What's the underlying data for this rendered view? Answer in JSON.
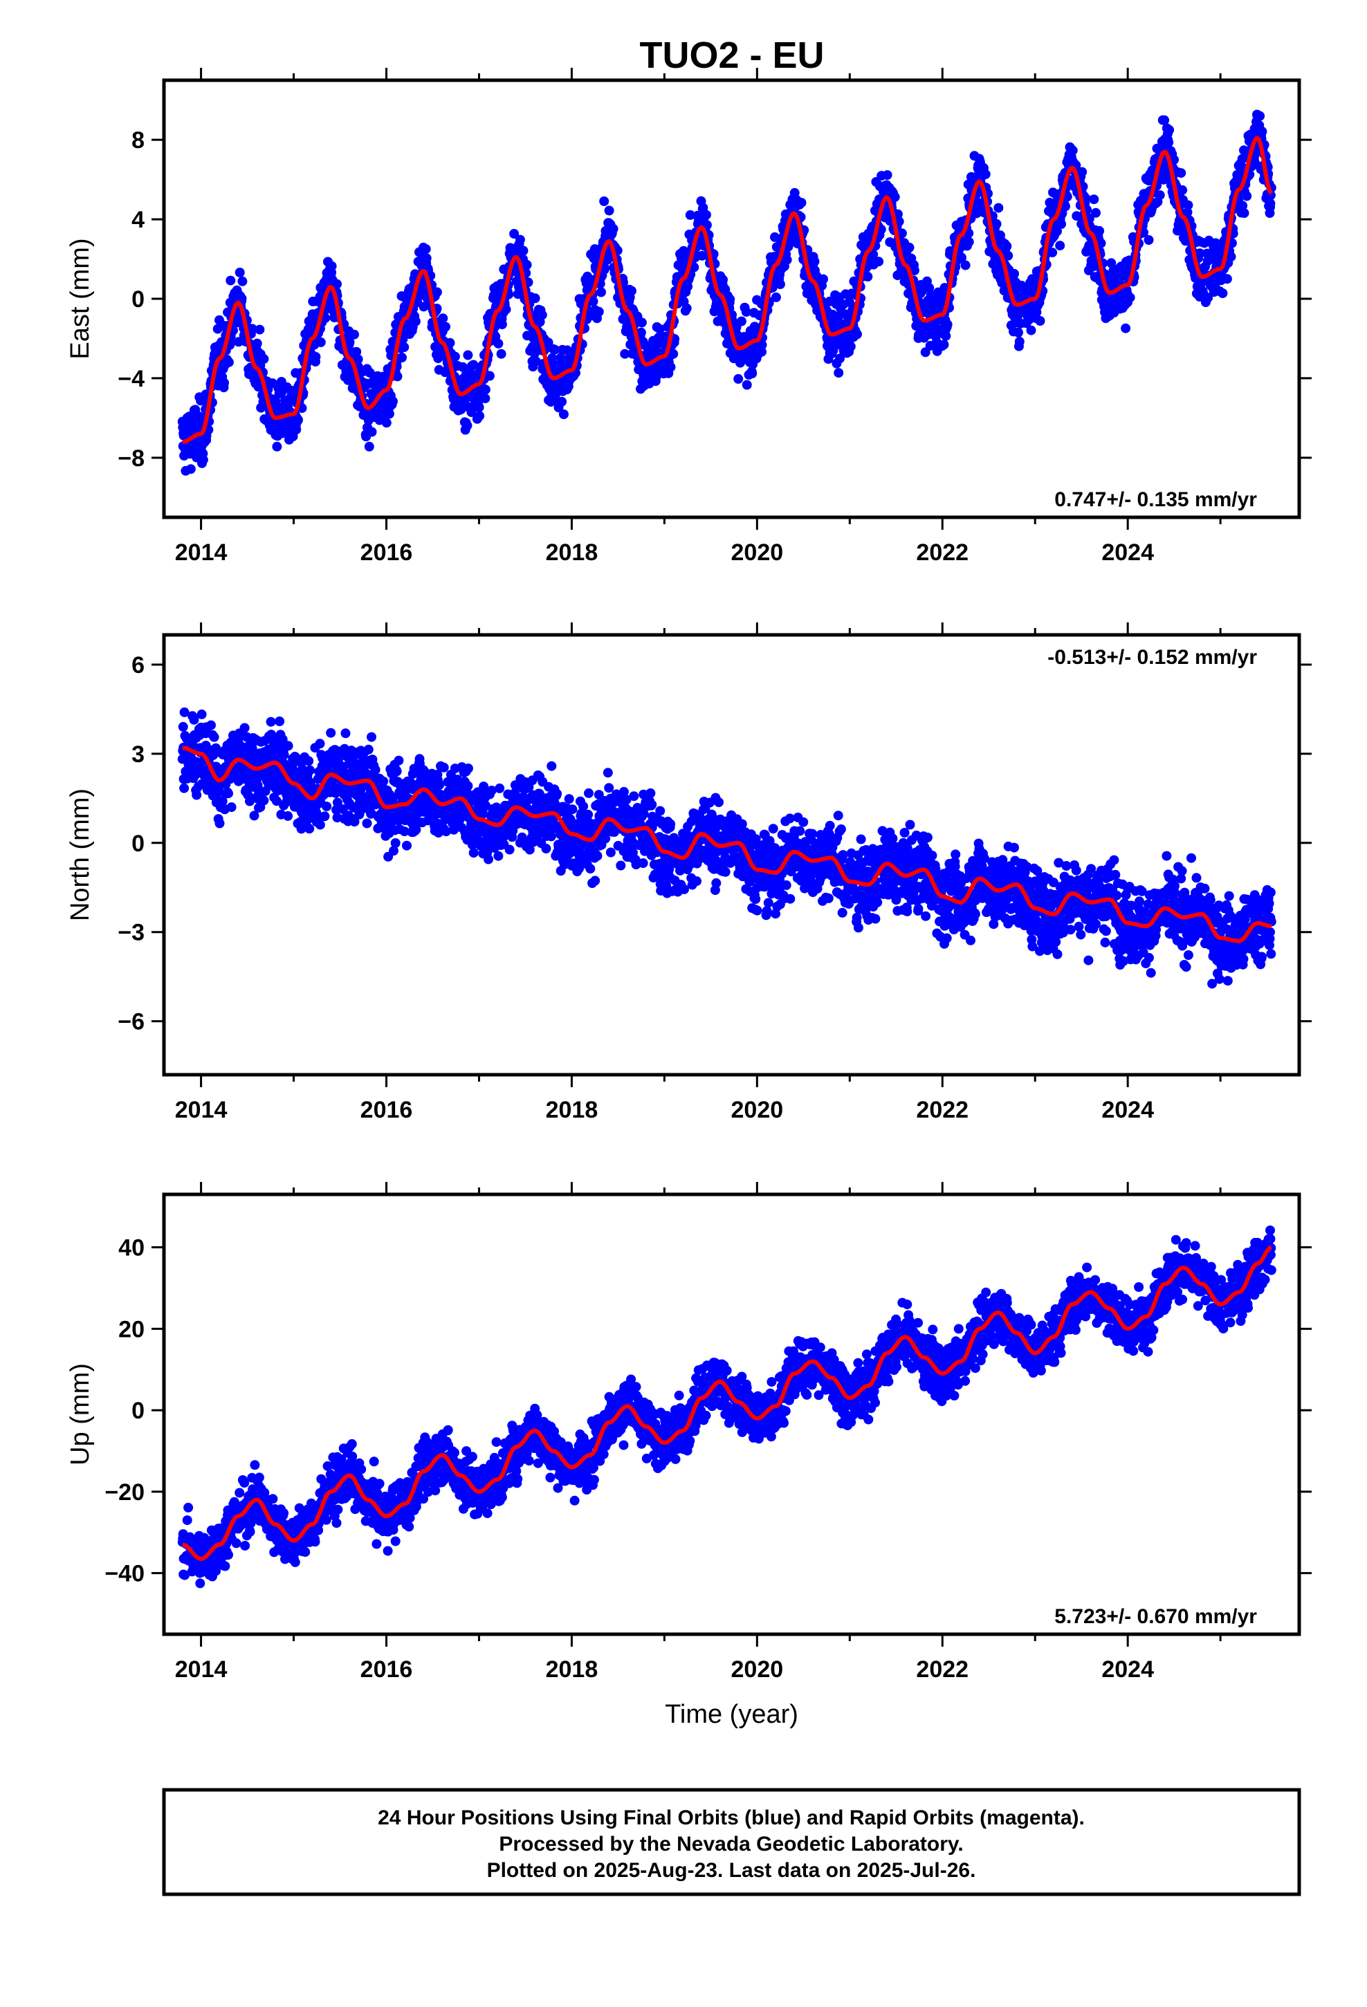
{
  "title": "TUO2 - EU",
  "footer": {
    "lines": [
      "24 Hour Positions Using Final Orbits (blue) and Rapid Orbits (magenta).",
      "Processed by the Nevada Geodetic Laboratory.",
      "Plotted on 2025-Aug-23. Last data on 2025-Jul-26."
    ]
  },
  "colors": {
    "points": "#0000ff",
    "model": "#ff0000",
    "frame": "#000000"
  },
  "chart_data": [
    {
      "type": "scatter",
      "ylabel": "East (mm)",
      "xlabel": "",
      "rate_label": "0.747+/- 0.135 mm/yr",
      "rate_position": "bottom-right",
      "xlim": [
        2013.6,
        2025.85
      ],
      "ylim": [
        -11,
        11
      ],
      "xticks": [
        "2014",
        "2016",
        "2018",
        "2020",
        "2022",
        "2024"
      ],
      "yticks": [
        "−8",
        "−4",
        "0",
        "4",
        "8"
      ],
      "series": [
        {
          "kind": "points",
          "x": [
            2013.8,
            2014.0,
            2014.2,
            2014.4,
            2014.6,
            2014.8,
            2015.0,
            2015.2,
            2015.4,
            2015.6,
            2015.8,
            2016.0,
            2016.2,
            2016.4,
            2016.6,
            2016.8,
            2017.0,
            2017.2,
            2017.4,
            2017.6,
            2017.8,
            2018.0,
            2018.2,
            2018.4,
            2018.6,
            2018.8,
            2019.0,
            2019.2,
            2019.4,
            2019.6,
            2019.8,
            2020.0,
            2020.2,
            2020.4,
            2020.6,
            2020.8,
            2021.0,
            2021.2,
            2021.4,
            2021.6,
            2021.8,
            2022.0,
            2022.2,
            2022.4,
            2022.6,
            2022.8,
            2023.0,
            2023.2,
            2023.4,
            2023.6,
            2023.8,
            2024.0,
            2024.2,
            2024.4,
            2024.6,
            2024.8,
            2025.0,
            2025.2,
            2025.4,
            2025.55
          ],
          "y": [
            -7.2,
            -6.8,
            -3.0,
            -0.2,
            -3.5,
            -6.0,
            -5.8,
            -2.0,
            0.6,
            -3.0,
            -5.5,
            -4.6,
            -1.0,
            1.4,
            -2.2,
            -4.8,
            -4.3,
            -0.6,
            2.1,
            -1.4,
            -4.0,
            -3.6,
            0.2,
            2.9,
            -0.6,
            -3.3,
            -2.9,
            1.0,
            3.6,
            0.2,
            -2.5,
            -2.1,
            1.7,
            4.3,
            0.9,
            -1.8,
            -1.5,
            2.4,
            5.1,
            1.7,
            -1.1,
            -0.8,
            3.2,
            5.9,
            2.4,
            -0.3,
            0.0,
            4.0,
            6.6,
            3.3,
            0.3,
            0.7,
            4.7,
            7.4,
            4.1,
            1.1,
            1.5,
            5.5,
            8.1,
            5.3
          ]
        },
        {
          "kind": "model",
          "x": [
            2013.8,
            2014.0,
            2014.2,
            2014.4,
            2014.6,
            2014.8,
            2015.0,
            2015.2,
            2015.4,
            2015.6,
            2015.8,
            2016.0,
            2016.2,
            2016.4,
            2016.6,
            2016.8,
            2017.0,
            2017.2,
            2017.4,
            2017.6,
            2017.8,
            2018.0,
            2018.2,
            2018.4,
            2018.6,
            2018.8,
            2019.0,
            2019.2,
            2019.4,
            2019.6,
            2019.8,
            2020.0,
            2020.2,
            2020.4,
            2020.6,
            2020.8,
            2021.0,
            2021.2,
            2021.4,
            2021.6,
            2021.8,
            2022.0,
            2022.2,
            2022.4,
            2022.6,
            2022.8,
            2023.0,
            2023.2,
            2023.4,
            2023.6,
            2023.8,
            2024.0,
            2024.2,
            2024.4,
            2024.6,
            2024.8,
            2025.0,
            2025.2,
            2025.4,
            2025.55
          ],
          "y": [
            -7.2,
            -6.8,
            -3.0,
            -0.2,
            -3.5,
            -6.0,
            -5.8,
            -2.0,
            0.6,
            -3.0,
            -5.5,
            -4.6,
            -1.0,
            1.4,
            -2.2,
            -4.8,
            -4.3,
            -0.6,
            2.1,
            -1.4,
            -4.0,
            -3.6,
            0.2,
            2.9,
            -0.6,
            -3.3,
            -2.9,
            1.0,
            3.6,
            0.2,
            -2.5,
            -2.1,
            1.7,
            4.3,
            0.9,
            -1.8,
            -1.5,
            2.4,
            5.1,
            1.7,
            -1.1,
            -0.8,
            3.2,
            5.9,
            2.4,
            -0.3,
            0.0,
            4.0,
            6.6,
            3.3,
            0.3,
            0.7,
            4.7,
            7.4,
            4.1,
            1.1,
            1.5,
            5.5,
            8.1,
            5.3
          ]
        }
      ]
    },
    {
      "type": "scatter",
      "ylabel": "North (mm)",
      "xlabel": "",
      "rate_label": "-0.513+/- 0.152 mm/yr",
      "rate_position": "top-right",
      "xlim": [
        2013.6,
        2025.85
      ],
      "ylim": [
        -7.8,
        7.0
      ],
      "xticks": [
        "2014",
        "2016",
        "2018",
        "2020",
        "2022",
        "2024"
      ],
      "yticks": [
        "−6",
        "−3",
        "0",
        "3",
        "6"
      ],
      "series": [
        {
          "kind": "points",
          "x": [
            2013.8,
            2014.0,
            2014.2,
            2014.4,
            2014.6,
            2014.8,
            2015.0,
            2015.2,
            2015.4,
            2015.6,
            2015.8,
            2016.0,
            2016.2,
            2016.4,
            2016.6,
            2016.8,
            2017.0,
            2017.2,
            2017.4,
            2017.6,
            2017.8,
            2018.0,
            2018.2,
            2018.4,
            2018.6,
            2018.8,
            2019.0,
            2019.2,
            2019.4,
            2019.6,
            2019.8,
            2020.0,
            2020.2,
            2020.4,
            2020.6,
            2020.8,
            2021.0,
            2021.2,
            2021.4,
            2021.6,
            2021.8,
            2022.0,
            2022.2,
            2022.4,
            2022.6,
            2022.8,
            2023.0,
            2023.2,
            2023.4,
            2023.6,
            2023.8,
            2024.0,
            2024.2,
            2024.4,
            2024.6,
            2024.8,
            2025.0,
            2025.2,
            2025.4,
            2025.55
          ],
          "y": [
            3.2,
            3.0,
            2.1,
            2.8,
            2.5,
            2.7,
            2.0,
            1.5,
            2.3,
            2.0,
            2.1,
            1.2,
            1.3,
            1.8,
            1.3,
            1.5,
            0.8,
            0.6,
            1.2,
            0.9,
            1.0,
            0.3,
            0.1,
            0.8,
            0.4,
            0.5,
            -0.3,
            -0.5,
            0.3,
            -0.1,
            0.0,
            -0.9,
            -1.0,
            -0.3,
            -0.6,
            -0.5,
            -1.3,
            -1.4,
            -0.7,
            -1.1,
            -0.9,
            -1.8,
            -2.0,
            -1.2,
            -1.6,
            -1.4,
            -2.2,
            -2.4,
            -1.7,
            -2.0,
            -1.9,
            -2.7,
            -2.8,
            -2.2,
            -2.5,
            -2.4,
            -3.2,
            -3.3,
            -2.7,
            -2.8
          ]
        },
        {
          "kind": "model",
          "x": [
            2013.8,
            2014.0,
            2014.2,
            2014.4,
            2014.6,
            2014.8,
            2015.0,
            2015.2,
            2015.4,
            2015.6,
            2015.8,
            2016.0,
            2016.2,
            2016.4,
            2016.6,
            2016.8,
            2017.0,
            2017.2,
            2017.4,
            2017.6,
            2017.8,
            2018.0,
            2018.2,
            2018.4,
            2018.6,
            2018.8,
            2019.0,
            2019.2,
            2019.4,
            2019.6,
            2019.8,
            2020.0,
            2020.2,
            2020.4,
            2020.6,
            2020.8,
            2021.0,
            2021.2,
            2021.4,
            2021.6,
            2021.8,
            2022.0,
            2022.2,
            2022.4,
            2022.6,
            2022.8,
            2023.0,
            2023.2,
            2023.4,
            2023.6,
            2023.8,
            2024.0,
            2024.2,
            2024.4,
            2024.6,
            2024.8,
            2025.0,
            2025.2,
            2025.4,
            2025.55
          ],
          "y": [
            3.2,
            3.0,
            2.1,
            2.8,
            2.5,
            2.7,
            2.0,
            1.5,
            2.3,
            2.0,
            2.1,
            1.2,
            1.3,
            1.8,
            1.3,
            1.5,
            0.8,
            0.6,
            1.2,
            0.9,
            1.0,
            0.3,
            0.1,
            0.8,
            0.4,
            0.5,
            -0.3,
            -0.5,
            0.3,
            -0.1,
            0.0,
            -0.9,
            -1.0,
            -0.3,
            -0.6,
            -0.5,
            -1.3,
            -1.4,
            -0.7,
            -1.1,
            -0.9,
            -1.8,
            -2.0,
            -1.2,
            -1.6,
            -1.4,
            -2.2,
            -2.4,
            -1.7,
            -2.0,
            -1.9,
            -2.7,
            -2.8,
            -2.2,
            -2.5,
            -2.4,
            -3.2,
            -3.3,
            -2.7,
            -2.8
          ]
        }
      ]
    },
    {
      "type": "scatter",
      "ylabel": "Up (mm)",
      "xlabel": "Time (year)",
      "rate_label": "5.723+/- 0.670 mm/yr",
      "rate_position": "bottom-right",
      "xlim": [
        2013.6,
        2025.85
      ],
      "ylim": [
        -55,
        53
      ],
      "xticks": [
        "2014",
        "2016",
        "2018",
        "2020",
        "2022",
        "2024"
      ],
      "yticks": [
        "−40",
        "−20",
        "0",
        "20",
        "40"
      ],
      "series": [
        {
          "kind": "points",
          "x": [
            2013.8,
            2014.0,
            2014.2,
            2014.4,
            2014.6,
            2014.8,
            2015.0,
            2015.2,
            2015.4,
            2015.6,
            2015.8,
            2016.0,
            2016.2,
            2016.4,
            2016.6,
            2016.8,
            2017.0,
            2017.2,
            2017.4,
            2017.6,
            2017.8,
            2018.0,
            2018.2,
            2018.4,
            2018.6,
            2018.8,
            2019.0,
            2019.2,
            2019.4,
            2019.6,
            2019.8,
            2020.0,
            2020.2,
            2020.4,
            2020.6,
            2020.8,
            2021.0,
            2021.2,
            2021.4,
            2021.6,
            2021.8,
            2022.0,
            2022.2,
            2022.4,
            2022.6,
            2022.8,
            2023.0,
            2023.2,
            2023.4,
            2023.6,
            2023.8,
            2024.0,
            2024.2,
            2024.4,
            2024.6,
            2024.8,
            2025.0,
            2025.2,
            2025.4,
            2025.55
          ],
          "y": [
            -33,
            -36.5,
            -33,
            -26,
            -22,
            -28,
            -32,
            -28,
            -20,
            -16,
            -22,
            -26,
            -23,
            -15,
            -11,
            -16,
            -20,
            -17,
            -9,
            -5,
            -10,
            -14,
            -11,
            -3,
            1,
            -4,
            -8,
            -5,
            3,
            7,
            2,
            -2,
            1,
            9,
            12,
            8,
            3,
            6,
            14,
            18,
            13,
            9,
            12,
            20,
            24,
            19,
            14,
            18,
            26,
            29,
            25,
            20,
            23,
            31,
            35,
            31,
            26,
            29,
            36,
            40
          ]
        },
        {
          "kind": "model",
          "x": [
            2013.8,
            2014.0,
            2014.2,
            2014.4,
            2014.6,
            2014.8,
            2015.0,
            2015.2,
            2015.4,
            2015.6,
            2015.8,
            2016.0,
            2016.2,
            2016.4,
            2016.6,
            2016.8,
            2017.0,
            2017.2,
            2017.4,
            2017.6,
            2017.8,
            2018.0,
            2018.2,
            2018.4,
            2018.6,
            2018.8,
            2019.0,
            2019.2,
            2019.4,
            2019.6,
            2019.8,
            2020.0,
            2020.2,
            2020.4,
            2020.6,
            2020.8,
            2021.0,
            2021.2,
            2021.4,
            2021.6,
            2021.8,
            2022.0,
            2022.2,
            2022.4,
            2022.6,
            2022.8,
            2023.0,
            2023.2,
            2023.4,
            2023.6,
            2023.8,
            2024.0,
            2024.2,
            2024.4,
            2024.6,
            2024.8,
            2025.0,
            2025.2,
            2025.4,
            2025.55
          ],
          "y": [
            -33,
            -36.5,
            -33,
            -26,
            -22,
            -28,
            -32,
            -28,
            -20,
            -16,
            -22,
            -26,
            -23,
            -15,
            -11,
            -16,
            -20,
            -17,
            -9,
            -5,
            -10,
            -14,
            -11,
            -3,
            1,
            -4,
            -8,
            -5,
            3,
            7,
            2,
            -2,
            1,
            9,
            12,
            8,
            3,
            6,
            14,
            18,
            13,
            9,
            12,
            20,
            24,
            19,
            14,
            18,
            26,
            29,
            25,
            20,
            23,
            31,
            35,
            31,
            26,
            29,
            36,
            40
          ]
        }
      ]
    }
  ]
}
